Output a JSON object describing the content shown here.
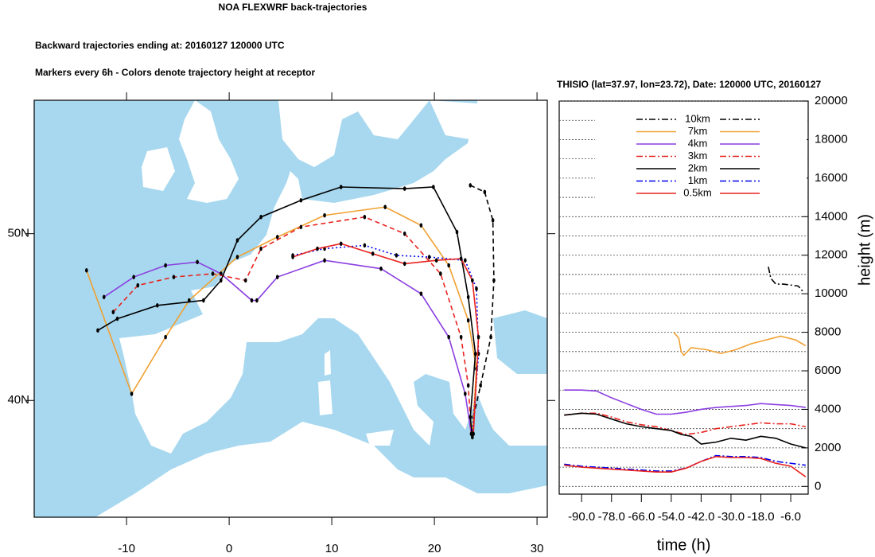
{
  "chart_data": [
    {
      "type": "line",
      "title": "NOA FLEXWRF back-trajectories",
      "subtitle": "Backward trajectories ending at: 20160127  120000 UTC",
      "note": "Markers every 6h - Colors denote trajectory height at receptor",
      "xlim": [
        -19,
        31
      ],
      "ylim": [
        33,
        58
      ],
      "xticks": [
        -10,
        0,
        10,
        20,
        30
      ],
      "yticks": [
        {
          "value": 40,
          "label": "40N"
        },
        {
          "value": 50,
          "label": "50N"
        }
      ],
      "markers": true,
      "series": [
        {
          "color": "#000000",
          "line_style": "dashed",
          "x": [
            23.5,
            24.9,
            25.7,
            25.8,
            25.5,
            24.5,
            23.8
          ],
          "values": [
            52.9,
            52.5,
            50.8,
            47.2,
            43.8,
            40.9,
            39.0
          ]
        },
        {
          "color": "#f0a030",
          "line_style": "solid",
          "x": [
            -13.9,
            -9.5,
            -6.2,
            -3.9,
            0.8,
            4.7,
            9.3,
            15.2,
            18.7,
            21.4,
            23.3,
            24.1,
            23.7
          ],
          "values": [
            47.8,
            40.4,
            43.8,
            46.0,
            48.6,
            49.8,
            51.1,
            51.6,
            50.5,
            48.1,
            44.8,
            41.9,
            38.0
          ]
        },
        {
          "color": "#8b3fe0",
          "line_style": "solid",
          "x": [
            -12.2,
            -9.3,
            -6.2,
            -3.1,
            -0.8,
            2.2,
            2.7,
            4.7,
            9.3,
            14.8,
            18.7,
            21.4,
            23.0,
            23.6
          ],
          "values": [
            46.2,
            47.4,
            48.1,
            48.3,
            47.6,
            46.0,
            46.0,
            47.4,
            48.4,
            47.9,
            46.4,
            43.8,
            40.4,
            38.0
          ]
        },
        {
          "color": "#e8231f",
          "line_style": "dashed",
          "x": [
            -11.3,
            -8.9,
            -5.4,
            -1.6,
            1.6,
            3.1,
            7.0,
            13.2,
            17.1,
            20.6,
            22.6,
            23.3,
            23.6
          ],
          "values": [
            45.3,
            46.9,
            47.4,
            47.6,
            47.2,
            49.1,
            50.4,
            51.0,
            50.0,
            47.6,
            43.8,
            40.9,
            38.0
          ]
        },
        {
          "color": "#000000",
          "line_style": "solid",
          "x": [
            -12.8,
            -10.9,
            -7.0,
            -2.5,
            -0.8,
            0.8,
            3.1,
            7.0,
            10.9,
            17.1,
            19.9,
            22.2,
            23.3,
            24.0,
            23.5,
            23.7
          ],
          "values": [
            44.2,
            44.9,
            45.7,
            46.0,
            47.2,
            49.6,
            51.0,
            52.0,
            52.8,
            52.7,
            52.8,
            50.1,
            46.2,
            42.8,
            39.0,
            37.8
          ]
        },
        {
          "color": "#0000ee",
          "line_style": "dotted",
          "x": [
            6.2,
            9.3,
            13.2,
            16.3,
            19.5,
            23.0,
            24.1,
            24.3,
            23.7
          ],
          "values": [
            48.7,
            49.1,
            49.3,
            48.7,
            48.6,
            48.4,
            46.7,
            42.8,
            38.0
          ]
        },
        {
          "color": "#e8231f",
          "line_style": "solid",
          "x": [
            6.2,
            8.6,
            10.9,
            14.0,
            17.1,
            20.2,
            22.6,
            23.7,
            24.3,
            23.8
          ],
          "values": [
            48.6,
            49.1,
            49.4,
            48.8,
            48.2,
            48.4,
            48.5,
            47.2,
            43.8,
            38.0
          ]
        }
      ]
    },
    {
      "type": "line",
      "title": "THISIO (lat=37.97,  lon=23.72), Date: 120000 UTC, 20160127",
      "x_label": "time (h)",
      "y_label": "height (m)",
      "xlim": [
        -99,
        1
      ],
      "ylim": [
        -400,
        20000
      ],
      "xticks": [
        {
          "value": -90,
          "label": "-90.0"
        },
        {
          "value": -78,
          "label": "-78.0"
        },
        {
          "value": -66,
          "label": "-66.0"
        },
        {
          "value": -54,
          "label": "-54.0"
        },
        {
          "value": -42,
          "label": "-42.0"
        },
        {
          "value": -30,
          "label": "-30.0"
        },
        {
          "value": -18,
          "label": "-18.0"
        },
        {
          "value": -6,
          "label": "-6.0"
        }
      ],
      "yticks": [
        0,
        2000,
        4000,
        6000,
        8000,
        10000,
        12000,
        14000,
        16000,
        18000,
        20000
      ],
      "y_minor_ticks": [
        1000,
        3000,
        5000,
        7000,
        9000,
        11000,
        13000,
        15000,
        17000,
        19000
      ],
      "grid": true,
      "legend": "upper center",
      "series": [
        {
          "name": "10km",
          "color": "#000000",
          "line_style": "dashdot",
          "x": [
            -15,
            -14,
            -12,
            -9,
            -6,
            -3,
            -1
          ],
          "values": [
            11400,
            10800,
            10500,
            10500,
            10450,
            10400,
            10100
          ]
        },
        {
          "name": "7km",
          "color": "#f0a030",
          "line_style": "solid",
          "x": [
            -53,
            -51,
            -50,
            -49,
            -46,
            -40,
            -34,
            -28,
            -22,
            -16,
            -10,
            -4,
            0
          ],
          "values": [
            8000,
            7700,
            7000,
            6800,
            7200,
            7100,
            6900,
            7100,
            7400,
            7600,
            7800,
            7600,
            7300
          ]
        },
        {
          "name": "4km",
          "color": "#8b3fe0",
          "line_style": "solid",
          "x": [
            -97,
            -90,
            -84,
            -78,
            -72,
            -66,
            -60,
            -54,
            -48,
            -42,
            -36,
            -30,
            -24,
            -18,
            -12,
            -6,
            0
          ],
          "values": [
            5000,
            5000,
            4950,
            4600,
            4300,
            4000,
            3750,
            3750,
            3850,
            4000,
            4100,
            4150,
            4200,
            4300,
            4250,
            4200,
            4100
          ]
        },
        {
          "name": "3km",
          "color": "#e8231f",
          "line_style": "dashdot",
          "x": [
            -97,
            -90,
            -84,
            -78,
            -72,
            -66,
            -60,
            -54,
            -48,
            -42,
            -36,
            -30,
            -24,
            -18,
            -12,
            -6,
            0
          ],
          "values": [
            3700,
            3800,
            3800,
            3600,
            3350,
            3200,
            3100,
            2900,
            2700,
            2800,
            3000,
            3100,
            3200,
            3300,
            3250,
            3250,
            3100
          ]
        },
        {
          "name": "2km",
          "color": "#000000",
          "line_style": "solid",
          "x": [
            -97,
            -90,
            -84,
            -78,
            -72,
            -66,
            -60,
            -54,
            -50,
            -46,
            -42,
            -36,
            -30,
            -24,
            -18,
            -12,
            -6,
            0
          ],
          "values": [
            3700,
            3800,
            3750,
            3500,
            3250,
            3100,
            3000,
            2900,
            2700,
            2600,
            2200,
            2300,
            2500,
            2400,
            2600,
            2500,
            2200,
            2000
          ]
        },
        {
          "name": "1km",
          "color": "#0000ee",
          "line_style": "dashdot",
          "x": [
            -97,
            -90,
            -84,
            -78,
            -72,
            -66,
            -60,
            -54,
            -48,
            -42,
            -36,
            -30,
            -24,
            -18,
            -12,
            -6,
            0
          ],
          "values": [
            1150,
            1050,
            1000,
            950,
            900,
            850,
            800,
            800,
            950,
            1300,
            1600,
            1550,
            1550,
            1500,
            1300,
            1200,
            1100
          ]
        },
        {
          "name": "0.5km",
          "color": "#e8231f",
          "line_style": "solid",
          "x": [
            -97,
            -90,
            -84,
            -78,
            -72,
            -66,
            -60,
            -54,
            -48,
            -42,
            -36,
            -30,
            -24,
            -18,
            -12,
            -6,
            0
          ],
          "values": [
            1100,
            1000,
            950,
            900,
            850,
            800,
            750,
            750,
            950,
            1300,
            1550,
            1500,
            1500,
            1450,
            1200,
            1050,
            500
          ]
        }
      ]
    }
  ]
}
